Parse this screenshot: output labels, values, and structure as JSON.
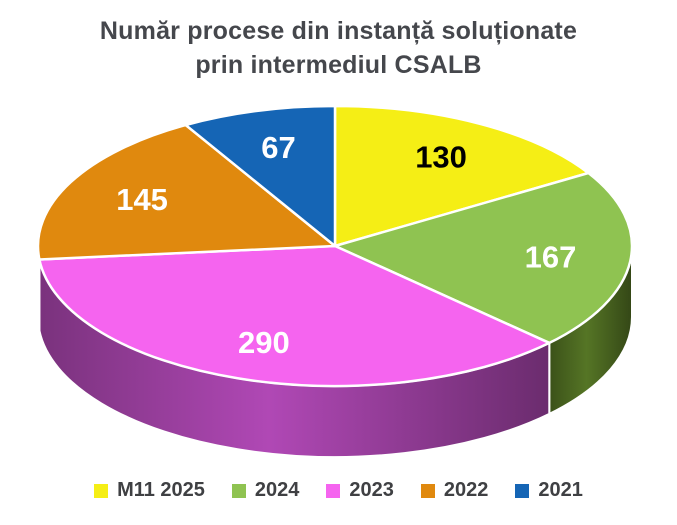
{
  "title": {
    "lines": [
      "Număr procese din instanță soluționate",
      "prin intermediul CSALB"
    ],
    "color": "#45474C"
  },
  "chart_data": {
    "type": "pie",
    "title": "Număr procese din instanță soluționate prin intermediul CSALB",
    "style": "3d",
    "start_angle_deg": 0,
    "direction": "clockwise",
    "legend_position": "bottom",
    "slices": [
      {
        "label": "M11 2025",
        "value": 130,
        "color": "#F5EE15",
        "side_color": "#B8B00E",
        "label_color": "#000000"
      },
      {
        "label": "2024",
        "value": 167,
        "color": "#8FC351",
        "side_color": "#48631F",
        "label_color": "#FFFFFF"
      },
      {
        "label": "2023",
        "value": 290,
        "color": "#F564EF",
        "side_color": "#953D99",
        "label_color": "#FFFFFF"
      },
      {
        "label": "2022",
        "value": 145,
        "color": "#E0890E",
        "side_color": "#8A5508",
        "label_color": "#FFFFFF"
      },
      {
        "label": "2021",
        "value": 67,
        "color": "#1565B5",
        "side_color": "#0D3E6E",
        "label_color": "#FFFFFF"
      }
    ]
  }
}
